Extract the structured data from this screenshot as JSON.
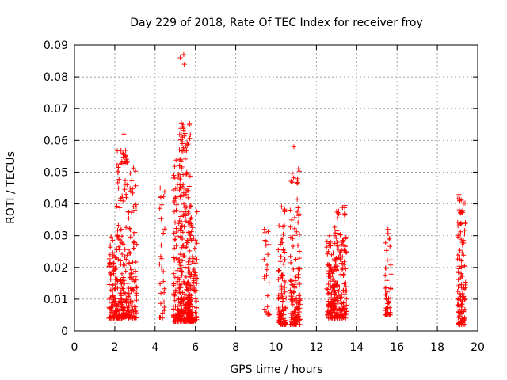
{
  "chart_data": {
    "type": "scatter",
    "title": "Day 229 of 2018, Rate Of TEC Index for receiver froy",
    "xlabel": "GPS time / hours",
    "ylabel": "ROTI / TECUs",
    "xlim": [
      0,
      20
    ],
    "ylim": [
      0,
      0.09
    ],
    "xticks": [
      "0",
      "2",
      "4",
      "6",
      "8",
      "10",
      "12",
      "14",
      "16",
      "18",
      "20"
    ],
    "yticks": [
      "0",
      "0.01",
      "0.02",
      "0.03",
      "0.04",
      "0.05",
      "0.06",
      "0.07",
      "0.08",
      "0.09"
    ],
    "grid": true,
    "marker": "plus",
    "color": "#ff0000",
    "clusters": [
      {
        "x_range": [
          1.7,
          2.1
        ],
        "y_range": [
          0.004,
          0.031
        ],
        "count": 90
      },
      {
        "x_range": [
          2.1,
          2.7
        ],
        "y_range": [
          0.004,
          0.057
        ],
        "count": 180
      },
      {
        "x_range": [
          2.7,
          3.1
        ],
        "y_range": [
          0.004,
          0.052
        ],
        "count": 90
      },
      {
        "x_range": [
          4.2,
          4.5
        ],
        "y_range": [
          0.004,
          0.045
        ],
        "count": 25
      },
      {
        "x_range": [
          4.9,
          5.3
        ],
        "y_range": [
          0.003,
          0.055
        ],
        "count": 120
      },
      {
        "x_range": [
          5.2,
          5.8
        ],
        "y_range": [
          0.003,
          0.066
        ],
        "count": 220
      },
      {
        "x_range": [
          5.6,
          6.1
        ],
        "y_range": [
          0.003,
          0.04
        ],
        "count": 120
      },
      {
        "x_range": [
          9.4,
          9.7
        ],
        "y_range": [
          0.005,
          0.032
        ],
        "count": 20
      },
      {
        "x_range": [
          10.1,
          10.5
        ],
        "y_range": [
          0.002,
          0.041
        ],
        "count": 110
      },
      {
        "x_range": [
          10.7,
          11.2
        ],
        "y_range": [
          0.002,
          0.052
        ],
        "count": 130
      },
      {
        "x_range": [
          12.5,
          13.0
        ],
        "y_range": [
          0.004,
          0.03
        ],
        "count": 130
      },
      {
        "x_range": [
          12.9,
          13.5
        ],
        "y_range": [
          0.004,
          0.04
        ],
        "count": 140
      },
      {
        "x_range": [
          15.4,
          15.7
        ],
        "y_range": [
          0.005,
          0.032
        ],
        "count": 50
      },
      {
        "x_range": [
          19.0,
          19.4
        ],
        "y_range": [
          0.002,
          0.043
        ],
        "count": 120
      }
    ],
    "points": [
      [
        5.25,
        0.086
      ],
      [
        5.42,
        0.087
      ],
      [
        5.45,
        0.084
      ],
      [
        5.3,
        0.0655
      ],
      [
        5.38,
        0.065
      ],
      [
        5.36,
        0.061
      ],
      [
        2.45,
        0.062
      ],
      [
        10.88,
        0.058
      ],
      [
        4.25,
        0.045
      ],
      [
        4.28,
        0.042
      ],
      [
        4.3,
        0.027
      ],
      [
        4.22,
        0.021
      ],
      [
        5.05,
        0.038
      ],
      [
        3.0,
        0.038
      ],
      [
        2.4,
        0.056
      ],
      [
        2.55,
        0.055
      ],
      [
        9.42,
        0.032
      ],
      [
        9.45,
        0.031
      ],
      [
        9.5,
        0.027
      ],
      [
        15.55,
        0.032
      ]
    ]
  }
}
